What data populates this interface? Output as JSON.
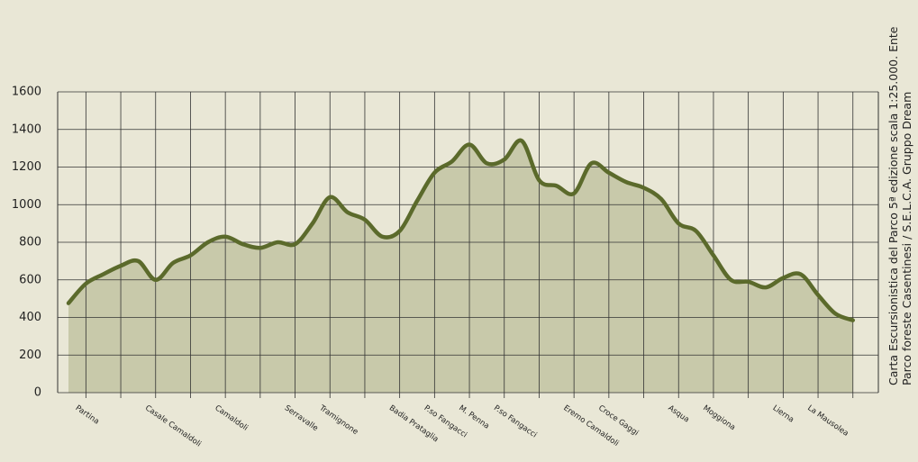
{
  "chart_data": {
    "type": "area",
    "categories": [
      null,
      "Partina",
      null,
      null,
      null,
      "Casale Camaldoli",
      null,
      null,
      null,
      "Camaldoli",
      null,
      null,
      null,
      "Serravalle",
      null,
      "Tramignone",
      null,
      null,
      null,
      "Badia Prataglia",
      null,
      "P.so Fangacci",
      null,
      "M. Penna",
      null,
      "P.so Fangacci",
      null,
      null,
      null,
      "Eremo Camaldoli",
      null,
      "Croce Gaggi",
      null,
      null,
      null,
      "Asqua",
      null,
      "Moggiona",
      null,
      null,
      null,
      "Lierna",
      null,
      "La Mausolea",
      null,
      null
    ],
    "values": [
      476,
      580,
      630,
      675,
      700,
      600,
      690,
      730,
      800,
      830,
      790,
      770,
      800,
      790,
      900,
      1040,
      960,
      920,
      830,
      860,
      1020,
      1170,
      1230,
      1320,
      1220,
      1240,
      1340,
      1130,
      1100,
      1060,
      1220,
      1170,
      1120,
      1090,
      1030,
      900,
      860,
      730,
      600,
      590,
      560,
      610,
      630,
      520,
      420,
      385
    ],
    "color": "#5b6a2b",
    "ylim": [
      0,
      1600
    ],
    "yticks": [
      0,
      200,
      400,
      600,
      800,
      1000,
      1200,
      1400,
      1600
    ],
    "grid": true,
    "note": [
      "Carta Escursionistica del Parco 5ª edizione scala 1:25.000. Ente",
      "Parco foreste Casentinesi / S.E.L.C.A. Gruppo Dream"
    ]
  }
}
